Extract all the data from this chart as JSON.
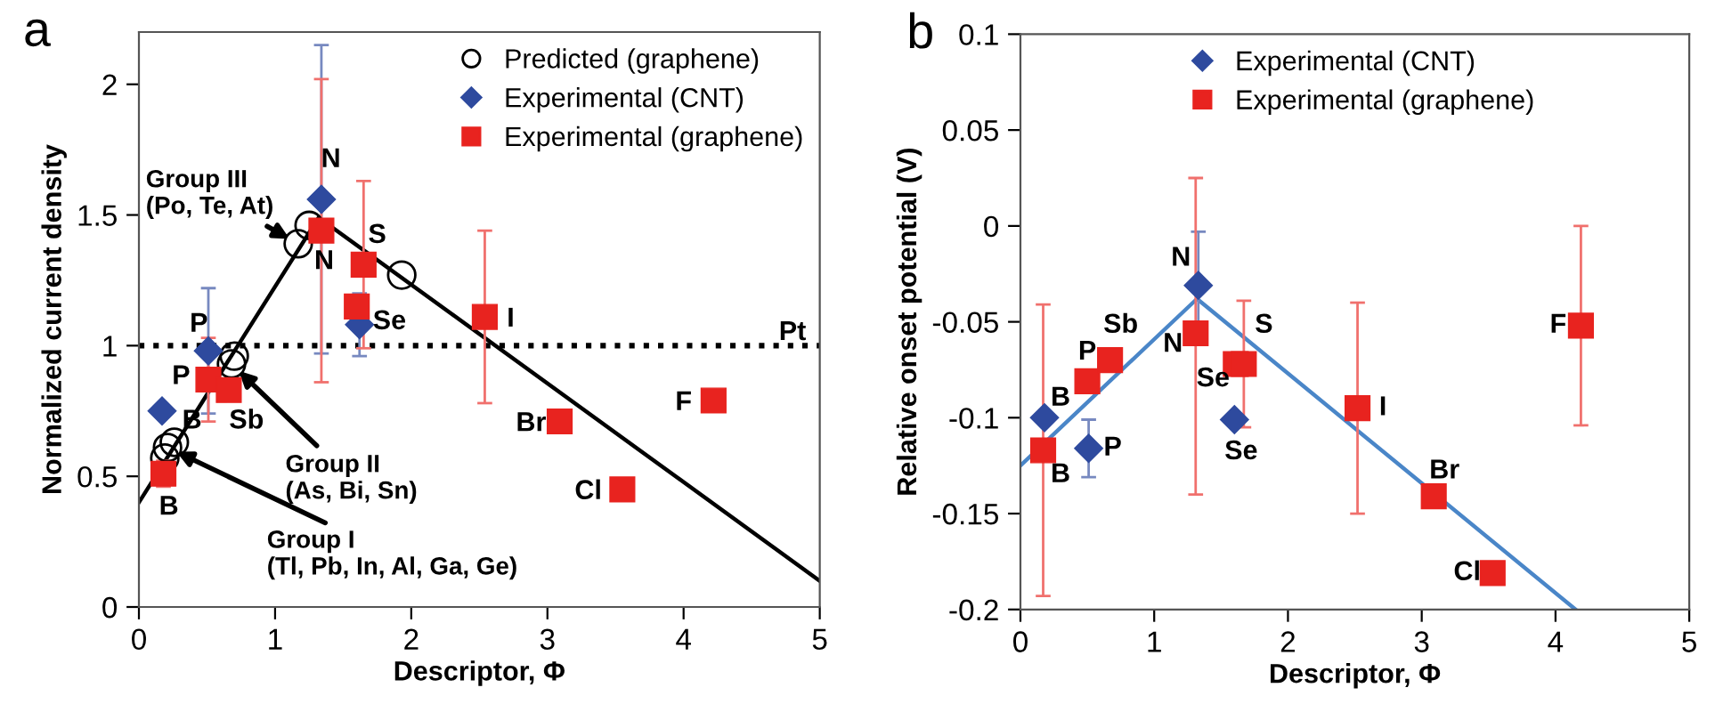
{
  "chart_data": [
    {
      "type": "scatter",
      "title": "a",
      "xlabel": "Descriptor, Φ",
      "ylabel": "Normalized current density",
      "xlim": [
        0,
        5
      ],
      "ylim": [
        0,
        2.2
      ],
      "xticks": [
        0,
        1,
        2,
        3,
        4,
        5
      ],
      "yticks": [
        0,
        {
          "value": 0.5,
          "label": "0.5"
        },
        1,
        {
          "value": 1.5,
          "label": "1.5"
        },
        2
      ],
      "grid": false,
      "legend": "top right",
      "series": [
        {
          "name": "Predicted (graphene)",
          "color": "#000000",
          "marker": "circle",
          "x": [
            0.19,
            0.21,
            0.26,
            0.68,
            0.7,
            1.17,
            1.25,
            1.93
          ],
          "values": [
            0.57,
            0.61,
            0.63,
            0.93,
            0.96,
            1.39,
            1.46,
            1.27
          ]
        },
        {
          "name": "Experimental (CNT)",
          "color": "#2e4a9e",
          "marker": "diamond",
          "x": [
            0.17,
            0.51,
            1.34,
            1.62
          ],
          "values": [
            0.75,
            0.98,
            1.56,
            1.08
          ],
          "errors": [
            null,
            0.24,
            0.59,
            0.12
          ]
        },
        {
          "name": "Experimental (graphene)",
          "color": "#e8231f",
          "marker": "square",
          "x": [
            0.18,
            0.51,
            0.66,
            1.34,
            1.6,
            1.65,
            2.54,
            3.09,
            3.55,
            4.22
          ],
          "values": [
            0.51,
            0.87,
            0.83,
            1.44,
            1.15,
            1.31,
            1.11,
            0.71,
            0.45,
            0.79
          ],
          "errors": [
            0.05,
            0.16,
            null,
            0.58,
            0.04,
            0.32,
            0.33,
            null,
            null,
            0.03
          ]
        },
        {
          "type": "line",
          "color": "#000000",
          "marker": "none",
          "x": [
            0,
            1.32,
            5
          ],
          "values": [
            0.4,
            1.49,
            0.1
          ]
        }
      ],
      "ref_lines": [
        {
          "axis": "y",
          "value": 1,
          "label": "Pt",
          "line_style": "dotted",
          "color": "#000000"
        }
      ],
      "annotations": [
        {
          "text": "Group III\n(Po, Te, At)",
          "x": 1.17,
          "y": 1.39
        },
        {
          "text": "Group II\n(As, Bi, Sn)",
          "x": 0.68,
          "y": 0.93
        },
        {
          "text": "Group I\n(Tl, Pb, In, Al, Ga, Ge)",
          "x": 0.21,
          "y": 0.61
        },
        {
          "text": "N",
          "x": 1.34,
          "y": 1.56
        },
        {
          "text": "N",
          "x": 1.34,
          "y": 1.44
        },
        {
          "text": "S",
          "x": 1.65,
          "y": 1.31
        },
        {
          "text": "Se",
          "x": 1.62,
          "y": 1.08
        },
        {
          "text": "P",
          "x": 0.51,
          "y": 0.98
        },
        {
          "text": "P",
          "x": 0.51,
          "y": 0.87
        },
        {
          "text": "B",
          "x": 0.17,
          "y": 0.75
        },
        {
          "text": "Sb",
          "x": 0.66,
          "y": 0.83
        },
        {
          "text": "B",
          "x": 0.18,
          "y": 0.51
        },
        {
          "text": "I",
          "x": 2.54,
          "y": 1.11
        },
        {
          "text": "Br",
          "x": 3.09,
          "y": 0.71
        },
        {
          "text": "Cl",
          "x": 3.55,
          "y": 0.45
        },
        {
          "text": "F",
          "x": 4.22,
          "y": 0.79
        }
      ]
    },
    {
      "type": "scatter",
      "title": "b",
      "xlabel": "Descriptor, Φ",
      "ylabel": "Relative onset potential (V)",
      "xlim": [
        0,
        5
      ],
      "ylim": [
        -0.2,
        0.1
      ],
      "xticks": [
        0,
        1,
        2,
        3,
        4,
        5
      ],
      "yticks": [
        {
          "value": -0.2,
          "label": "-0.2"
        },
        {
          "value": -0.15,
          "label": "-0.15"
        },
        {
          "value": -0.1,
          "label": "-0.1"
        },
        {
          "value": -0.05,
          "label": "-0.05"
        },
        0,
        {
          "value": 0.05,
          "label": "0.05"
        },
        {
          "value": 0.1,
          "label": "0.1"
        }
      ],
      "grid": false,
      "legend": "top",
      "series": [
        {
          "name": "Experimental (CNT)",
          "color": "#2e4a9e",
          "marker": "diamond",
          "x": [
            0.18,
            0.51,
            1.33,
            1.6
          ],
          "values": [
            -0.1,
            -0.116,
            -0.031,
            -0.101
          ],
          "errors": [
            null,
            0.015,
            0.028,
            null
          ]
        },
        {
          "name": "Experimental (graphene)",
          "color": "#e8231f",
          "marker": "square",
          "x": [
            0.17,
            0.5,
            0.67,
            1.31,
            1.61,
            1.67,
            2.52,
            3.09,
            3.53,
            4.19
          ],
          "values": [
            -0.117,
            -0.081,
            -0.07,
            -0.056,
            -0.072,
            -0.072,
            -0.095,
            -0.141,
            -0.181,
            -0.052
          ],
          "errors": [
            0.076,
            null,
            null,
            [
              -0.14,
              0.025
            ],
            null,
            0.033,
            0.055,
            null,
            null,
            0.052
          ]
        },
        {
          "type": "line",
          "color": "#4a86c8",
          "marker": "none",
          "x": [
            0,
            1.32,
            4.15
          ],
          "values": [
            -0.125,
            -0.038,
            -0.2
          ]
        }
      ],
      "annotations": [
        {
          "text": "N",
          "x": 1.33,
          "y": -0.031
        },
        {
          "text": "N",
          "x": 1.31,
          "y": -0.056
        },
        {
          "text": "Sb",
          "x": 0.67,
          "y": -0.07
        },
        {
          "text": "P",
          "x": 0.5,
          "y": -0.081
        },
        {
          "text": "B",
          "x": 0.18,
          "y": -0.1
        },
        {
          "text": "B",
          "x": 0.17,
          "y": -0.117
        },
        {
          "text": "P",
          "x": 0.51,
          "y": -0.116
        },
        {
          "text": "Se",
          "x": 1.61,
          "y": -0.072
        },
        {
          "text": "S",
          "x": 1.67,
          "y": -0.072
        },
        {
          "text": "Se",
          "x": 1.6,
          "y": -0.101
        },
        {
          "text": "I",
          "x": 2.52,
          "y": -0.095
        },
        {
          "text": "Br",
          "x": 3.09,
          "y": -0.141
        },
        {
          "text": "Cl",
          "x": 3.53,
          "y": -0.181
        },
        {
          "text": "F",
          "x": 4.19,
          "y": -0.052
        }
      ]
    }
  ]
}
